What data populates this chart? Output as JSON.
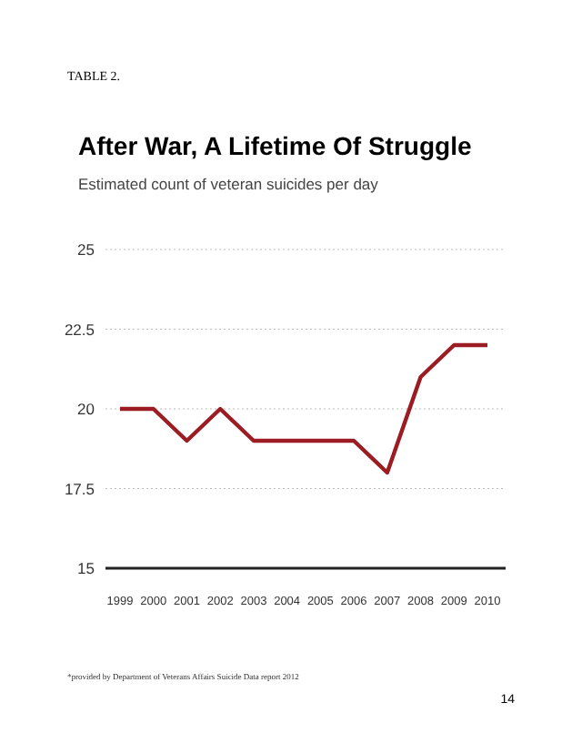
{
  "chart_data": {
    "type": "line",
    "title": "After War, A Lifetime Of Struggle",
    "subtitle": "Estimated count of veteran suicides per day",
    "categories": [
      "1999",
      "2000",
      "2001",
      "2002",
      "2003",
      "2004",
      "2005",
      "2006",
      "2007",
      "2008",
      "2009",
      "2010"
    ],
    "values": [
      20,
      20,
      19,
      20,
      19,
      19,
      19,
      19,
      18,
      21,
      22,
      22
    ],
    "color": "#9b1c22",
    "ylim": [
      15,
      25
    ],
    "yticks": [
      15,
      17.5,
      20,
      22.5,
      25
    ],
    "grid": "y",
    "marker": "none",
    "line_style": "solid",
    "annotations": [
      "TABLE 2.",
      "*provided by Department of Veterans Affairs Suicide Data report 2012",
      "14"
    ]
  }
}
